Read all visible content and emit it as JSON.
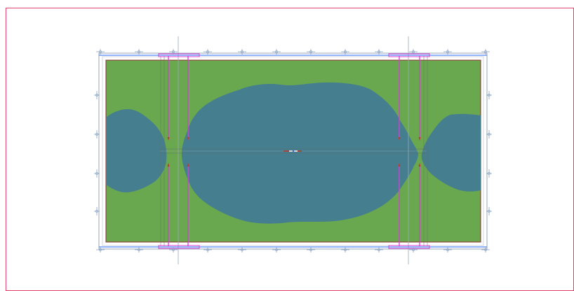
{
  "canvas": {
    "background": "#ffffff",
    "view_border_color": "#e0426a"
  },
  "plan": {
    "slab_color": "#6aa84f",
    "slab_edge_color": "#8b2e2e",
    "contour_color": "#457f8f",
    "grid_line_color": "#9aa6b8",
    "beam_color": "#4f86f7",
    "column_line_color": "#d63dd6",
    "support_marker_icon": "support-symbol-icon",
    "left_side_label": "",
    "right_side_label": ""
  }
}
